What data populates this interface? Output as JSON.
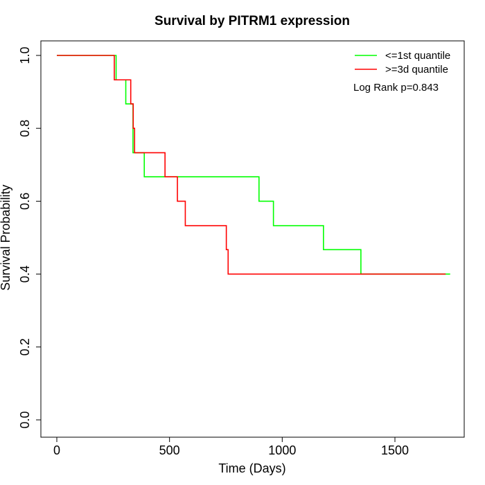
{
  "chart_data": {
    "type": "line",
    "title": "Survival by PITRM1 expression",
    "xlabel": "Time (Days)",
    "ylabel": "Survival Probability",
    "xlim": [
      0,
      1750
    ],
    "ylim": [
      0,
      1.0
    ],
    "x_ticks": [
      0,
      500,
      1000,
      1500
    ],
    "y_ticks": [
      0.0,
      0.2,
      0.4,
      0.6,
      0.8,
      1.0
    ],
    "x_tick_labels": [
      "0",
      "500",
      "1000",
      "1500"
    ],
    "y_tick_labels": [
      "0.0",
      "0.2",
      "0.4",
      "0.6",
      "0.8",
      "1.0"
    ],
    "grid": false,
    "legend_position": "top-right",
    "annotation": "Log Rank p=0.843",
    "series": [
      {
        "name": "<=1st quantile",
        "color": "#00ff00",
        "step": true,
        "x": [
          0,
          263,
          306,
          338,
          388,
          897,
          961,
          1183,
          1349,
          1745
        ],
        "y": [
          1.0,
          0.933,
          0.867,
          0.733,
          0.667,
          0.6,
          0.533,
          0.467,
          0.4,
          0.4
        ]
      },
      {
        "name": ">=3d quantile",
        "color": "#ff0000",
        "step": true,
        "x": [
          0,
          255,
          328,
          339,
          345,
          480,
          535,
          570,
          752,
          760,
          1725
        ],
        "y": [
          1.0,
          0.933,
          0.867,
          0.8,
          0.733,
          0.667,
          0.6,
          0.533,
          0.467,
          0.4,
          0.4
        ]
      }
    ]
  }
}
